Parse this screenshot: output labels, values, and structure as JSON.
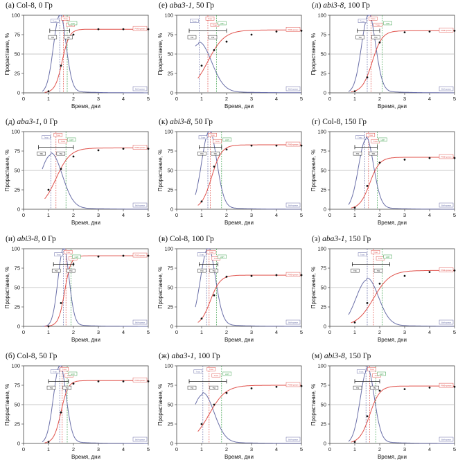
{
  "axis_labels": {
    "x": "Время, дни",
    "y": "Прорастание, %"
  },
  "marker_labels": {
    "a": "Tmax",
    "b": "Tmax",
    "c": "T50",
    "d": "T50",
    "e": "Tmax",
    "f": "НЭП"
  },
  "curve_labels": {
    "red": "РМФ-кривая",
    "blue": "Вей-кривая"
  },
  "colors": {
    "red": "#e0504a",
    "blue": "#6a6fa8",
    "green": "#3aa04a",
    "black": "#222222",
    "grid": "#b8b8b8"
  },
  "chart_data": [
    {
      "title_prefix": "(а)",
      "genotype": "Col-8",
      "dose": "0 Гр",
      "italic": false,
      "type": "line",
      "xlim": [
        0,
        5
      ],
      "ylim": [
        0,
        100
      ],
      "xticks": [
        0,
        1,
        2,
        3,
        4,
        5
      ],
      "yticks": [
        0,
        25,
        50,
        75,
        100
      ],
      "ref_line": 50,
      "series": [
        {
          "color": "red",
          "x": [
            1.0,
            1.5,
            2.0,
            3.0,
            4.0,
            5.0
          ],
          "y": [
            2,
            35,
            75,
            82,
            82,
            82
          ],
          "plateau": 82,
          "t50": 1.55,
          "k": 7
        },
        {
          "color": "blue",
          "peak_x": 1.45,
          "peak_y": 100,
          "width": 0.25
        }
      ],
      "vlines": {
        "red": 1.6,
        "blue": 1.45,
        "green": 1.75
      },
      "hbar": [
        1.05,
        1.85
      ]
    },
    {
      "title_prefix": "(д)",
      "genotype": "aba3-1",
      "dose": "0 Гр",
      "italic": true,
      "type": "line",
      "xlim": [
        0,
        5
      ],
      "ylim": [
        0,
        100
      ],
      "xticks": [
        0,
        1,
        2,
        3,
        4,
        5
      ],
      "yticks": [
        0,
        25,
        50,
        75,
        100
      ],
      "ref_line": 50,
      "series": [
        {
          "color": "red",
          "x": [
            1.0,
            1.5,
            2.0,
            3.0,
            4.0,
            5.0
          ],
          "y": [
            25,
            52,
            68,
            76,
            78,
            78
          ],
          "plateau": 79,
          "t50": 1.3,
          "k": 3.5
        },
        {
          "color": "blue",
          "peak_x": 1.1,
          "peak_y": 70,
          "width": 0.45
        }
      ],
      "vlines": {
        "red": 1.3,
        "blue": 1.1,
        "green": 1.7
      },
      "hbar": [
        0.6,
        2.0
      ]
    },
    {
      "title_prefix": "(и)",
      "genotype": "abi3-8",
      "dose": "0 Гр",
      "italic": true,
      "type": "line",
      "xlim": [
        0,
        5
      ],
      "ylim": [
        0,
        100
      ],
      "xticks": [
        0,
        1,
        2,
        3,
        4,
        5
      ],
      "yticks": [
        0,
        25,
        50,
        75,
        100
      ],
      "ref_line": 50,
      "series": [
        {
          "color": "red",
          "x": [
            1.0,
            1.5,
            2.0,
            3.0,
            4.0,
            5.0
          ],
          "y": [
            0,
            30,
            80,
            90,
            91,
            91
          ],
          "plateau": 91,
          "t50": 1.65,
          "k": 8
        },
        {
          "color": "blue",
          "peak_x": 1.6,
          "peak_y": 100,
          "width": 0.22
        }
      ],
      "vlines": {
        "red": 1.7,
        "blue": 1.6,
        "green": 1.9
      },
      "hbar": [
        1.2,
        2.0
      ]
    },
    {
      "title_prefix": "(б)",
      "genotype": "Col-8",
      "dose": "50 Гр",
      "italic": false,
      "type": "line",
      "xlim": [
        0,
        5
      ],
      "ylim": [
        0,
        100
      ],
      "xticks": [
        0,
        1,
        2,
        3,
        4,
        5
      ],
      "yticks": [
        0,
        25,
        50,
        75,
        100
      ],
      "ref_line": 50,
      "series": [
        {
          "color": "red",
          "x": [
            1.0,
            1.5,
            2.0,
            3.0,
            4.0,
            5.0
          ],
          "y": [
            2,
            40,
            77,
            80,
            80,
            80
          ],
          "plateau": 81,
          "t50": 1.5,
          "k": 7
        },
        {
          "color": "blue",
          "peak_x": 1.45,
          "peak_y": 100,
          "width": 0.25
        }
      ],
      "vlines": {
        "red": 1.55,
        "blue": 1.45,
        "green": 1.75
      },
      "hbar": [
        1.0,
        1.8
      ]
    },
    {
      "title_prefix": "(е)",
      "genotype": "aba3-1",
      "dose": "50 Гр",
      "italic": true,
      "type": "line",
      "xlim": [
        0,
        5
      ],
      "ylim": [
        0,
        100
      ],
      "xticks": [
        0,
        1,
        2,
        3,
        4,
        5
      ],
      "yticks": [
        0,
        25,
        50,
        75,
        100
      ],
      "ref_line": 50,
      "series": [
        {
          "color": "red",
          "x": [
            1.0,
            1.5,
            2.0,
            3.0,
            4.0,
            5.0
          ],
          "y": [
            35,
            55,
            66,
            75,
            79,
            80
          ],
          "plateau": 81,
          "t50": 1.25,
          "k": 3
        },
        {
          "color": "blue",
          "peak_x": 0.9,
          "peak_y": 63,
          "width": 0.5
        }
      ],
      "vlines": {
        "red": 1.25,
        "blue": 0.9,
        "green": 1.6
      },
      "hbar": [
        0.5,
        2.0
      ]
    },
    {
      "title_prefix": "(к)",
      "genotype": "abi3-8",
      "dose": "50 Гр",
      "italic": true,
      "type": "line",
      "xlim": [
        0,
        5
      ],
      "ylim": [
        0,
        100
      ],
      "xticks": [
        0,
        1,
        2,
        3,
        4,
        5
      ],
      "yticks": [
        0,
        25,
        50,
        75,
        100
      ],
      "ref_line": 50,
      "series": [
        {
          "color": "red",
          "x": [
            1.0,
            1.5,
            2.0,
            3.0,
            4.0,
            5.0
          ],
          "y": [
            10,
            55,
            77,
            82,
            82,
            82
          ],
          "plateau": 83,
          "t50": 1.4,
          "k": 5
        },
        {
          "color": "blue",
          "peak_x": 1.3,
          "peak_y": 100,
          "width": 0.3
        }
      ],
      "vlines": {
        "red": 1.35,
        "blue": 1.25,
        "green": 1.8
      },
      "hbar": [
        0.9,
        1.8
      ]
    },
    {
      "title_prefix": "(в)",
      "genotype": "Col-8",
      "dose": "100 Гр",
      "italic": false,
      "type": "line",
      "xlim": [
        0,
        5
      ],
      "ylim": [
        0,
        100
      ],
      "xticks": [
        0,
        1,
        2,
        3,
        4,
        5
      ],
      "yticks": [
        0,
        25,
        50,
        75,
        100
      ],
      "ref_line": 50,
      "series": [
        {
          "color": "red",
          "x": [
            1.0,
            1.5,
            2.0,
            3.0,
            4.0,
            5.0
          ],
          "y": [
            10,
            40,
            64,
            65,
            66,
            66
          ],
          "plateau": 66,
          "t50": 1.35,
          "k": 5
        },
        {
          "color": "blue",
          "peak_x": 1.25,
          "peak_y": 100,
          "width": 0.3
        }
      ],
      "vlines": {
        "red": 1.3,
        "blue": 1.2,
        "green": 1.6
      },
      "hbar": [
        0.9,
        1.65
      ]
    },
    {
      "title_prefix": "(ж)",
      "genotype": "aba3-1",
      "dose": "100 Гр",
      "italic": true,
      "type": "line",
      "xlim": [
        0,
        5
      ],
      "ylim": [
        0,
        100
      ],
      "xticks": [
        0,
        1,
        2,
        3,
        4,
        5
      ],
      "yticks": [
        0,
        25,
        50,
        75,
        100
      ],
      "ref_line": 50,
      "series": [
        {
          "color": "red",
          "x": [
            1.0,
            1.5,
            2.0,
            3.0,
            4.0,
            5.0
          ],
          "y": [
            25,
            50,
            65,
            71,
            73,
            74
          ],
          "plateau": 75,
          "t50": 1.3,
          "k": 3
        },
        {
          "color": "blue",
          "peak_x": 1.05,
          "peak_y": 63,
          "width": 0.45
        }
      ],
      "vlines": {
        "red": 1.3,
        "blue": 1.05,
        "green": 1.8
      },
      "hbar": [
        0.5,
        2.0
      ]
    },
    {
      "title_prefix": "(л)",
      "genotype": "abi3-8",
      "dose": "100 Гр",
      "italic": true,
      "type": "line",
      "xlim": [
        0,
        5
      ],
      "ylim": [
        0,
        100
      ],
      "xticks": [
        0,
        1,
        2,
        3,
        4,
        5
      ],
      "yticks": [
        0,
        25,
        50,
        75,
        100
      ],
      "ref_line": 50,
      "series": [
        {
          "color": "red",
          "x": [
            1.0,
            1.5,
            2.0,
            3.0,
            4.0,
            5.0
          ],
          "y": [
            2,
            20,
            65,
            78,
            79,
            80
          ],
          "plateau": 80,
          "t50": 1.7,
          "k": 5
        },
        {
          "color": "blue",
          "peak_x": 1.55,
          "peak_y": 100,
          "width": 0.28
        }
      ],
      "vlines": {
        "red": 1.65,
        "blue": 1.5,
        "green": 2.1
      },
      "hbar": [
        1.1,
        2.0
      ]
    },
    {
      "title_prefix": "(г)",
      "genotype": "Col-8",
      "dose": "150 Гр",
      "italic": false,
      "type": "line",
      "xlim": [
        0,
        5
      ],
      "ylim": [
        0,
        100
      ],
      "xticks": [
        0,
        1,
        2,
        3,
        4,
        5
      ],
      "yticks": [
        0,
        25,
        50,
        75,
        100
      ],
      "ref_line": 50,
      "series": [
        {
          "color": "red",
          "x": [
            1.0,
            1.5,
            2.0,
            3.0,
            4.0,
            5.0
          ],
          "y": [
            2,
            30,
            60,
            64,
            66,
            66
          ],
          "plateau": 67,
          "t50": 1.6,
          "k": 5
        },
        {
          "color": "blue",
          "peak_x": 1.45,
          "peak_y": 90,
          "width": 0.3
        }
      ],
      "vlines": {
        "red": 1.55,
        "blue": 1.4,
        "green": 1.9
      },
      "hbar": [
        1.0,
        1.9
      ]
    },
    {
      "title_prefix": "(з)",
      "genotype": "aba3-1",
      "dose": "150 Гр",
      "italic": true,
      "type": "line",
      "xlim": [
        0,
        5
      ],
      "ylim": [
        0,
        100
      ],
      "xticks": [
        0,
        1,
        2,
        3,
        4,
        5
      ],
      "yticks": [
        0,
        25,
        50,
        75,
        100
      ],
      "ref_line": 50,
      "series": [
        {
          "color": "red",
          "x": [
            1.0,
            1.5,
            2.0,
            3.0,
            4.0,
            5.0
          ],
          "y": [
            5,
            30,
            55,
            65,
            70,
            72
          ],
          "plateau": 72,
          "t50": 1.75,
          "k": 3
        },
        {
          "color": "blue",
          "peak_x": 1.5,
          "peak_y": 60,
          "width": 0.45
        }
      ],
      "vlines": {
        "red": 1.75,
        "blue": 1.5,
        "green": 2.1
      },
      "hbar": [
        0.9,
        2.4
      ]
    },
    {
      "title_prefix": "(м)",
      "genotype": "abi3-8",
      "dose": "150 Гр",
      "italic": true,
      "type": "line",
      "xlim": [
        0,
        5
      ],
      "ylim": [
        0,
        100
      ],
      "xticks": [
        0,
        1,
        2,
        3,
        4,
        5
      ],
      "yticks": [
        0,
        25,
        50,
        75,
        100
      ],
      "ref_line": 50,
      "series": [
        {
          "color": "red",
          "x": [
            1.0,
            1.5,
            2.0,
            3.0,
            4.0,
            5.0
          ],
          "y": [
            2,
            35,
            68,
            70,
            72,
            73
          ],
          "plateau": 74,
          "t50": 1.6,
          "k": 5
        },
        {
          "color": "blue",
          "peak_x": 1.5,
          "peak_y": 95,
          "width": 0.28
        }
      ],
      "vlines": {
        "red": 1.6,
        "blue": 1.45,
        "green": 1.85
      },
      "hbar": [
        1.0,
        2.0
      ]
    }
  ]
}
